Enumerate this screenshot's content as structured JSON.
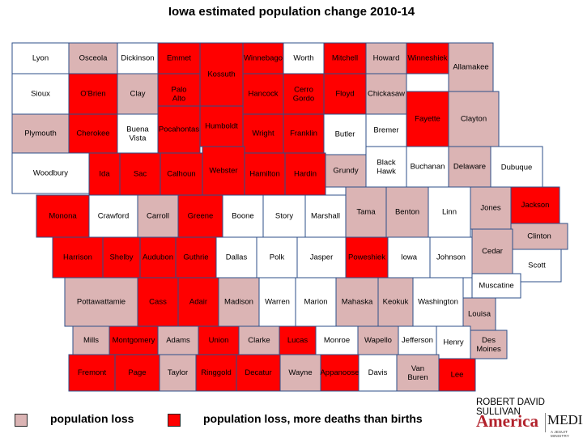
{
  "title": "Iowa estimated population change 2010-14",
  "colors": {
    "loss": "#dbb4b4",
    "loss_more_deaths": "#ff0000",
    "none": "#ffffff",
    "border": "#2d4f8a"
  },
  "legend": [
    {
      "label": "population loss",
      "category": "loss"
    },
    {
      "label": "population loss, more deaths than births",
      "category": "loss_more_deaths"
    }
  ],
  "credit": "ROBERT DAVID SULLIVAN",
  "logo": {
    "brand1": "America",
    "brand2": "MEDIA",
    "tagline": "A JESUIT MINISTRY"
  },
  "counties": [
    {
      "name": "Lyon",
      "cat": "none"
    },
    {
      "name": "Osceola",
      "cat": "loss"
    },
    {
      "name": "Dickinson",
      "cat": "none"
    },
    {
      "name": "Emmet",
      "cat": "loss_more_deaths"
    },
    {
      "name": "Kossuth",
      "cat": "loss_more_deaths"
    },
    {
      "name": "Winnebago",
      "cat": "loss_more_deaths"
    },
    {
      "name": "Worth",
      "cat": "none"
    },
    {
      "name": "Mitchell",
      "cat": "loss_more_deaths"
    },
    {
      "name": "Howard",
      "cat": "loss"
    },
    {
      "name": "Winneshiek",
      "cat": "loss_more_deaths"
    },
    {
      "name": "Allamakee",
      "cat": "loss"
    },
    {
      "name": "Sioux",
      "cat": "none"
    },
    {
      "name": "O'Brien",
      "cat": "loss_more_deaths"
    },
    {
      "name": "Clay",
      "cat": "loss"
    },
    {
      "name": "Palo Alto",
      "cat": "loss_more_deaths"
    },
    {
      "name": "Hancock",
      "cat": "loss_more_deaths"
    },
    {
      "name": "Cerro Gordo",
      "cat": "loss_more_deaths"
    },
    {
      "name": "Floyd",
      "cat": "loss_more_deaths"
    },
    {
      "name": "Chickasaw",
      "cat": "loss"
    },
    {
      "name": "Fayette",
      "cat": "loss_more_deaths"
    },
    {
      "name": "Clayton",
      "cat": "loss"
    },
    {
      "name": "Plymouth",
      "cat": "loss"
    },
    {
      "name": "Cherokee",
      "cat": "loss_more_deaths"
    },
    {
      "name": "Buena Vista",
      "cat": "none"
    },
    {
      "name": "Pocahontas",
      "cat": "loss_more_deaths"
    },
    {
      "name": "Humboldt",
      "cat": "loss_more_deaths"
    },
    {
      "name": "Wright",
      "cat": "loss_more_deaths"
    },
    {
      "name": "Franklin",
      "cat": "loss_more_deaths"
    },
    {
      "name": "Butler",
      "cat": "none"
    },
    {
      "name": "Bremer",
      "cat": "none"
    },
    {
      "name": "Woodbury",
      "cat": "none"
    },
    {
      "name": "Ida",
      "cat": "loss_more_deaths"
    },
    {
      "name": "Sac",
      "cat": "loss_more_deaths"
    },
    {
      "name": "Calhoun",
      "cat": "loss_more_deaths"
    },
    {
      "name": "Webster",
      "cat": "loss_more_deaths"
    },
    {
      "name": "Hamilton",
      "cat": "loss_more_deaths"
    },
    {
      "name": "Hardin",
      "cat": "loss_more_deaths"
    },
    {
      "name": "Grundy",
      "cat": "loss"
    },
    {
      "name": "Black Hawk",
      "cat": "none"
    },
    {
      "name": "Buchanan",
      "cat": "none"
    },
    {
      "name": "Delaware",
      "cat": "loss"
    },
    {
      "name": "Dubuque",
      "cat": "none"
    },
    {
      "name": "Monona",
      "cat": "loss_more_deaths"
    },
    {
      "name": "Crawford",
      "cat": "none"
    },
    {
      "name": "Carroll",
      "cat": "loss"
    },
    {
      "name": "Greene",
      "cat": "loss_more_deaths"
    },
    {
      "name": "Boone",
      "cat": "none"
    },
    {
      "name": "Story",
      "cat": "none"
    },
    {
      "name": "Marshall",
      "cat": "none"
    },
    {
      "name": "Tama",
      "cat": "loss"
    },
    {
      "name": "Benton",
      "cat": "loss"
    },
    {
      "name": "Linn",
      "cat": "none"
    },
    {
      "name": "Jones",
      "cat": "loss"
    },
    {
      "name": "Jackson",
      "cat": "loss_more_deaths"
    },
    {
      "name": "Clinton",
      "cat": "loss"
    },
    {
      "name": "Harrison",
      "cat": "loss_more_deaths"
    },
    {
      "name": "Shelby",
      "cat": "loss_more_deaths"
    },
    {
      "name": "Audubon",
      "cat": "loss_more_deaths"
    },
    {
      "name": "Guthrie",
      "cat": "loss_more_deaths"
    },
    {
      "name": "Dallas",
      "cat": "none"
    },
    {
      "name": "Polk",
      "cat": "none"
    },
    {
      "name": "Jasper",
      "cat": "none"
    },
    {
      "name": "Poweshiek",
      "cat": "loss_more_deaths"
    },
    {
      "name": "Iowa",
      "cat": "none"
    },
    {
      "name": "Johnson",
      "cat": "none"
    },
    {
      "name": "Cedar",
      "cat": "loss"
    },
    {
      "name": "Scott",
      "cat": "none"
    },
    {
      "name": "Muscatine",
      "cat": "none"
    },
    {
      "name": "Pottawattamie",
      "cat": "loss"
    },
    {
      "name": "Cass",
      "cat": "loss_more_deaths"
    },
    {
      "name": "Adair",
      "cat": "loss_more_deaths"
    },
    {
      "name": "Madison",
      "cat": "loss"
    },
    {
      "name": "Warren",
      "cat": "none"
    },
    {
      "name": "Marion",
      "cat": "none"
    },
    {
      "name": "Mahaska",
      "cat": "loss"
    },
    {
      "name": "Keokuk",
      "cat": "loss"
    },
    {
      "name": "Washington",
      "cat": "none"
    },
    {
      "name": "Louisa",
      "cat": "loss"
    },
    {
      "name": "Mills",
      "cat": "loss"
    },
    {
      "name": "Montgomery",
      "cat": "loss_more_deaths"
    },
    {
      "name": "Adams",
      "cat": "loss"
    },
    {
      "name": "Union",
      "cat": "loss_more_deaths"
    },
    {
      "name": "Clarke",
      "cat": "loss"
    },
    {
      "name": "Lucas",
      "cat": "loss_more_deaths"
    },
    {
      "name": "Monroe",
      "cat": "none"
    },
    {
      "name": "Wapello",
      "cat": "loss"
    },
    {
      "name": "Jefferson",
      "cat": "none"
    },
    {
      "name": "Henry",
      "cat": "none"
    },
    {
      "name": "Des Moines",
      "cat": "loss"
    },
    {
      "name": "Fremont",
      "cat": "loss_more_deaths"
    },
    {
      "name": "Page",
      "cat": "loss_more_deaths"
    },
    {
      "name": "Taylor",
      "cat": "loss"
    },
    {
      "name": "Ringgold",
      "cat": "loss_more_deaths"
    },
    {
      "name": "Decatur",
      "cat": "loss_more_deaths"
    },
    {
      "name": "Wayne",
      "cat": "loss"
    },
    {
      "name": "Appanoose",
      "cat": "loss_more_deaths"
    },
    {
      "name": "Davis",
      "cat": "none"
    },
    {
      "name": "Van Buren",
      "cat": "loss"
    },
    {
      "name": "Lee",
      "cat": "loss_more_deaths"
    }
  ]
}
